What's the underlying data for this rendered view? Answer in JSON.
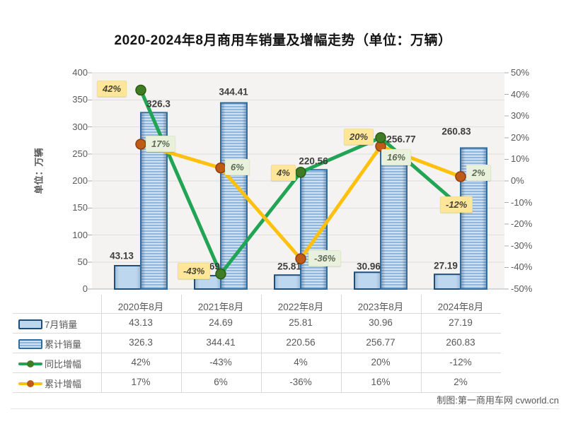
{
  "title": "2020-2024年8月商用车销量及增幅走势（单位：万辆）",
  "y_axis": {
    "label": "单位：万辆",
    "ticks": [
      "400",
      "350",
      "300",
      "250",
      "200",
      "150",
      "100",
      "50",
      "0"
    ]
  },
  "right_axis_ticks": [
    "50%",
    "40%",
    "30%",
    "20%",
    "10%",
    "0%",
    "-10%",
    "-20%",
    "-30%",
    "-40%",
    "-50%"
  ],
  "credit": "制图:第一商用车网 cvworld.cn",
  "colors": {
    "bar_small_fill": "#bdd7ee",
    "bar_small_border": "#1f4e79",
    "bar_big_fill": "#9cc3e5",
    "bar_big_border": "#2e6da4",
    "line_yoy": "#22a455",
    "marker_yoy": "#3e7d23",
    "line_cum": "#ffc10e",
    "marker_cum": "#c05a17",
    "label_bg_yoy": "#ffe699",
    "label_bg_cum": "#e9f1dd",
    "plot_bg": "#f4f3f1",
    "gridline": "#e0deda"
  },
  "chart_data": {
    "type": "bar+line combo",
    "title": "2020-2024年8月商用车销量及增幅走势（单位：万辆）",
    "categories": [
      "2020年8月",
      "2021年8月",
      "2022年8月",
      "2023年8月",
      "2024年8月"
    ],
    "left_axis": {
      "label": "单位：万辆",
      "min": 0,
      "max": 400,
      "step": 50
    },
    "right_axis": {
      "min": -50,
      "max": 50,
      "step": 10,
      "unit": "%"
    },
    "grid": "horizontal",
    "legend_position": "bottom-left table",
    "series": [
      {
        "name": "7月销量",
        "type": "bar",
        "axis": "left",
        "style": "plain",
        "values": [
          43.13,
          24.69,
          25.81,
          30.96,
          27.19
        ],
        "labels": [
          "43.13",
          "24.69",
          "25.81",
          "30.96",
          "27.19"
        ]
      },
      {
        "name": "累计销量",
        "type": "bar",
        "axis": "left",
        "style": "striped",
        "values": [
          326.3,
          344.41,
          220.56,
          256.77,
          260.83
        ],
        "labels": [
          "326.3",
          "344.41",
          "220.56",
          "256.77",
          "260.83"
        ]
      },
      {
        "name": "同比增幅",
        "type": "line",
        "axis": "right",
        "values": [
          42,
          -43,
          4,
          20,
          -12
        ],
        "labels": [
          "42%",
          "-43%",
          "4%",
          "20%",
          "-12%"
        ]
      },
      {
        "name": "累计增幅",
        "type": "line",
        "axis": "right",
        "values": [
          17,
          6,
          -36,
          16,
          2
        ],
        "labels": [
          "17%",
          "6%",
          "-36%",
          "16%",
          "2%"
        ]
      }
    ]
  },
  "legend_table": {
    "rows": [
      {
        "key": "7月销量",
        "swatch": "bar-plain",
        "values": [
          "43.13",
          "24.69",
          "25.81",
          "30.96",
          "27.19"
        ]
      },
      {
        "key": "累计销量",
        "swatch": "bar-striped",
        "values": [
          "326.3",
          "344.41",
          "220.56",
          "256.77",
          "260.83"
        ]
      },
      {
        "key": "同比增幅",
        "swatch": "line-green",
        "values": [
          "42%",
          "-43%",
          "4%",
          "20%",
          "-12%"
        ]
      },
      {
        "key": "累计增幅",
        "swatch": "line-yellow",
        "values": [
          "17%",
          "6%",
          "-36%",
          "16%",
          "2%"
        ]
      }
    ]
  }
}
